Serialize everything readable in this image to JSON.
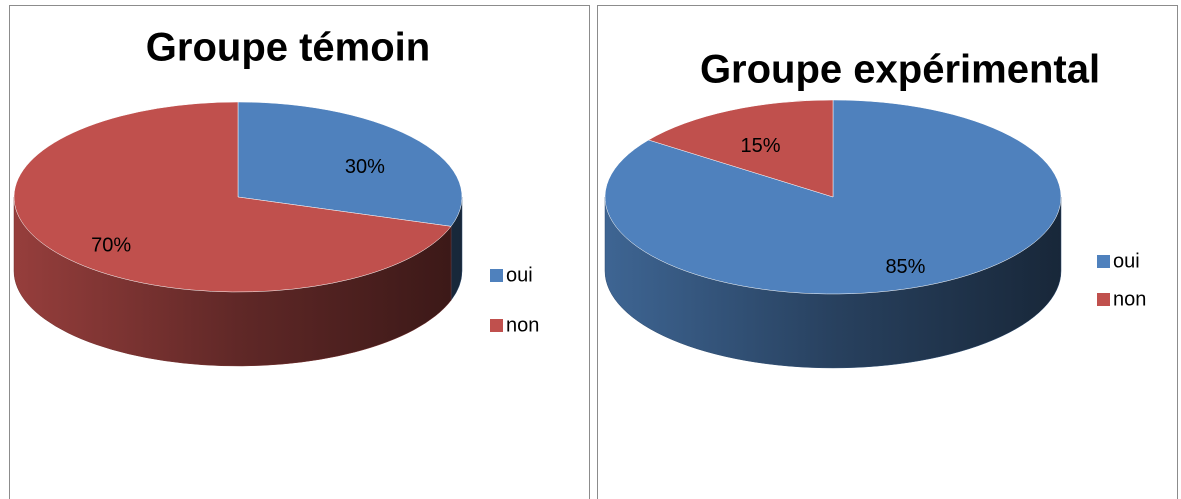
{
  "chart_data": [
    {
      "type": "pie",
      "title": "Groupe témoin",
      "categories": [
        "oui",
        "non"
      ],
      "values": [
        30,
        70
      ],
      "value_labels": [
        "30%",
        "70%"
      ],
      "colors": [
        "#4f81bd",
        "#c0504d"
      ],
      "legend": "right"
    },
    {
      "type": "pie",
      "title": "Groupe expérimental",
      "categories": [
        "oui",
        "non"
      ],
      "values": [
        85,
        15
      ],
      "value_labels": [
        "85%",
        "15%"
      ],
      "colors": [
        "#4f81bd",
        "#c0504d"
      ],
      "legend": "right"
    }
  ]
}
